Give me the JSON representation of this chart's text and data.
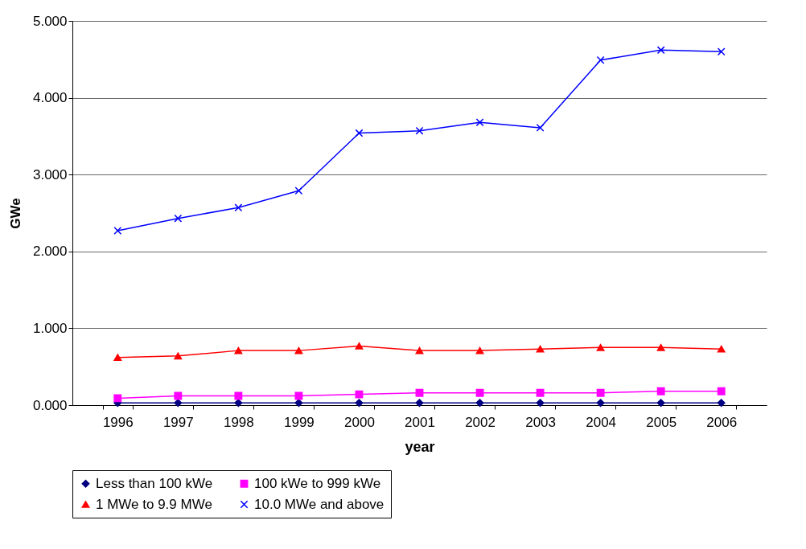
{
  "chart_data": {
    "type": "line",
    "xlabel": "year",
    "ylabel": "GWe",
    "categories": [
      "1996",
      "1997",
      "1998",
      "1999",
      "2000",
      "2001",
      "2002",
      "2003",
      "2004",
      "2005",
      "2006"
    ],
    "series": [
      {
        "name": "Less than 100 kWe",
        "color": "#000080",
        "marker": "diamond",
        "values": [
          0.03,
          0.03,
          0.03,
          0.03,
          0.03,
          0.03,
          0.03,
          0.03,
          0.03,
          0.03,
          0.03
        ]
      },
      {
        "name": "100 kWe to 999 kWe",
        "color": "#ff00ff",
        "marker": "square",
        "values": [
          0.09,
          0.12,
          0.12,
          0.12,
          0.14,
          0.16,
          0.16,
          0.16,
          0.16,
          0.18,
          0.18
        ]
      },
      {
        "name": "1 MWe to 9.9 MWe",
        "color": "#ff0000",
        "marker": "triangle",
        "values": [
          0.62,
          0.64,
          0.71,
          0.71,
          0.77,
          0.71,
          0.71,
          0.73,
          0.75,
          0.75,
          0.73
        ]
      },
      {
        "name": "10.0 MWe and above",
        "color": "#0000ff",
        "marker": "cross",
        "values": [
          2.27,
          2.43,
          2.57,
          2.79,
          3.54,
          3.57,
          3.68,
          3.61,
          4.49,
          4.62,
          4.6
        ]
      }
    ],
    "ylim": [
      0,
      5
    ],
    "yticks": [
      {
        "value": 0,
        "label": "0.000"
      },
      {
        "value": 1,
        "label": "1.000"
      },
      {
        "value": 2,
        "label": "2.000"
      },
      {
        "value": 3,
        "label": "3.000"
      },
      {
        "value": 4,
        "label": "4.000"
      },
      {
        "value": 5,
        "label": "5.000"
      }
    ],
    "grid": "y",
    "legend": "bottom",
    "line_style": "solid"
  }
}
